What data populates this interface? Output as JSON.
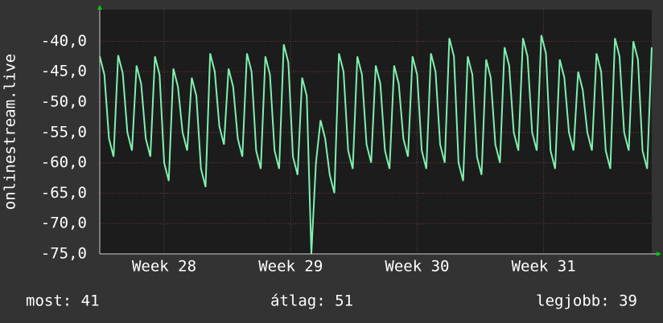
{
  "chart_data": {
    "type": "line",
    "y_label": "onlinestream.live",
    "ylim": [
      -75,
      -34.8
    ],
    "yticks": [
      {
        "value": -75,
        "label": "-75,0"
      },
      {
        "value": -70,
        "label": "-70,0"
      },
      {
        "value": -65,
        "label": "-65,0"
      },
      {
        "value": -60,
        "label": "-60,0"
      },
      {
        "value": -55,
        "label": "-55,0"
      },
      {
        "value": -50,
        "label": "-50,0"
      },
      {
        "value": -45,
        "label": "-45,0"
      },
      {
        "value": -40,
        "label": "-40,0"
      }
    ],
    "xlim": [
      0,
      120
    ],
    "xticks": [
      {
        "value": 14,
        "label": "Week 28"
      },
      {
        "value": 41.5,
        "label": "Week 29"
      },
      {
        "value": 69,
        "label": "Week 30"
      },
      {
        "value": 96.5,
        "label": "Week 31"
      }
    ],
    "grid": true,
    "series": [
      {
        "color": "#7ff0b0",
        "values": [
          -42.5,
          -45.5,
          -56,
          -59,
          -42.3,
          -45.3,
          -55,
          -58,
          -44,
          -47,
          -56,
          -59,
          -42.5,
          -45.5,
          -60,
          -63,
          -44.5,
          -47.5,
          -55,
          -58,
          -46,
          -49,
          -61,
          -64,
          -42,
          -45,
          -54,
          -57,
          -44.5,
          -47.5,
          -56,
          -59,
          -42,
          -45,
          -58,
          -61,
          -42.5,
          -45.5,
          -58,
          -61,
          -40.5,
          -43.5,
          -59,
          -62,
          -46,
          -49,
          -75,
          -60,
          -53,
          -56,
          -62,
          -65,
          -42,
          -45,
          -58,
          -61,
          -42.5,
          -45.5,
          -57,
          -60,
          -44,
          -47,
          -58,
          -61,
          -44,
          -47,
          -56,
          -59,
          -42.5,
          -45.5,
          -58,
          -61,
          -42,
          -45,
          -57,
          -60,
          -39.5,
          -42.5,
          -60,
          -63,
          -42.5,
          -45.5,
          -59,
          -62,
          -43,
          -46,
          -57,
          -60,
          -41,
          -44,
          -55,
          -58,
          -39.5,
          -42.5,
          -55,
          -58,
          -39,
          -42,
          -58,
          -61,
          -43,
          -46,
          -55,
          -58,
          -45,
          -48,
          -55,
          -58,
          -42,
          -45,
          -58,
          -61,
          -39.5,
          -42.5,
          -55,
          -58,
          -40,
          -43,
          -58,
          -61,
          -41
        ]
      }
    ],
    "footer": [
      "most: 41",
      "átlag: 51",
      "legjobb: 39"
    ]
  }
}
